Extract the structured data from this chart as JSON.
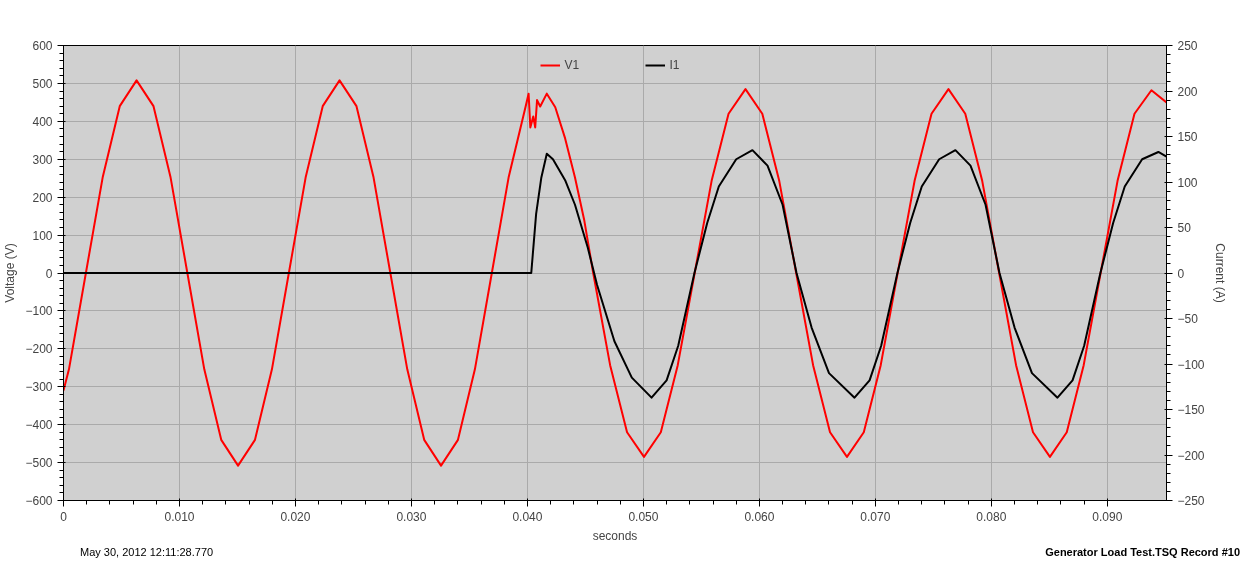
{
  "chart_data": {
    "type": "line",
    "xlabel": "seconds",
    "ylabel": "Voltage (V)",
    "y2label": "Current (A)",
    "annotations": [
      "May 30, 2012 12:11:28.770",
      "Generator Load Test.TSQ   Record #10"
    ],
    "xlim": [
      0,
      0.0951
    ],
    "ylim": [
      -600,
      600
    ],
    "y2lim": [
      -250,
      250
    ],
    "xticks": [
      0,
      {
        "value": 0.01,
        "label": "0.010"
      },
      {
        "value": 0.02,
        "label": "0.020"
      },
      {
        "value": 0.03,
        "label": "0.030"
      },
      {
        "value": 0.04,
        "label": "0.040"
      },
      {
        "value": 0.05,
        "label": "0.050"
      },
      {
        "value": 0.06,
        "label": "0.060"
      },
      {
        "value": 0.07,
        "label": "0.070"
      },
      {
        "value": 0.08,
        "label": "0.080"
      },
      {
        "value": 0.09,
        "label": "0.090"
      }
    ],
    "yticks": [
      -600,
      -500,
      -400,
      -300,
      -200,
      -100,
      0,
      100,
      200,
      300,
      400,
      500,
      600
    ],
    "y2ticks": [
      -250,
      -200,
      -150,
      -100,
      -50,
      0,
      50,
      100,
      150,
      200,
      250
    ],
    "grid": true,
    "legend": "top",
    "series": [
      {
        "name": "V1",
        "color": "#ff0000",
        "x": [
          0,
          0.00047,
          0.00193,
          0.00339,
          0.00485,
          0.0063,
          0.00776,
          0.00922,
          0.01068,
          0.01214,
          0.0136,
          0.01505,
          0.01651,
          0.01797,
          0.01943,
          0.02089,
          0.02235,
          0.0238,
          0.02526,
          0.02672,
          0.02818,
          0.02964,
          0.0311,
          0.03255,
          0.03401,
          0.03547,
          0.03693,
          0.03839,
          0.03985,
          0.0401,
          0.04025,
          0.0405,
          0.04067,
          0.04083,
          0.0411,
          0.04167,
          0.0424,
          0.04325,
          0.0441,
          0.0449,
          0.04567,
          0.04713,
          0.04859,
          0.05005,
          0.0515,
          0.05296,
          0.05442,
          0.05588,
          0.05734,
          0.0588,
          0.06025,
          0.06171,
          0.06317,
          0.06463,
          0.06609,
          0.06755,
          0.069,
          0.07046,
          0.07192,
          0.07338,
          0.07484,
          0.0763,
          0.07775,
          0.07921,
          0.08067,
          0.08213,
          0.08359,
          0.08505,
          0.0865,
          0.08796,
          0.08942,
          0.09088,
          0.09234,
          0.0938,
          0.0951
        ],
        "values": [
          -310,
          -254,
          0,
          254,
          440,
          508,
          440,
          254,
          0,
          -254,
          -440,
          -508,
          -440,
          -254,
          0,
          254,
          440,
          508,
          440,
          254,
          0,
          -254,
          -440,
          -508,
          -440,
          -254,
          0,
          254,
          440,
          473,
          384,
          413,
          384,
          456,
          439,
          473,
          437,
          355,
          252,
          139,
          0,
          -243,
          -420,
          -485,
          -420,
          -243,
          0,
          243,
          420,
          485,
          420,
          243,
          0,
          -243,
          -420,
          -485,
          -420,
          -243,
          0,
          243,
          420,
          485,
          420,
          243,
          0,
          -243,
          -420,
          -485,
          -420,
          -243,
          0,
          243,
          420,
          482,
          450
        ]
      },
      {
        "name": "I1",
        "color": "#000000",
        "axis": "y2",
        "x": [
          0,
          0.04033,
          0.04075,
          0.0412,
          0.04167,
          0.0422,
          0.04325,
          0.0441,
          0.0452,
          0.046,
          0.0475,
          0.049,
          0.0507,
          0.052,
          0.053,
          0.0544,
          0.0555,
          0.0565,
          0.058,
          0.0594,
          0.0607,
          0.062,
          0.0632,
          0.0645,
          0.066,
          0.0682,
          0.0695,
          0.0705,
          0.0719,
          0.073,
          0.074,
          0.0755,
          0.0769,
          0.0782,
          0.0795,
          0.0807,
          0.082,
          0.0835,
          0.0857,
          0.087,
          0.088,
          0.0894,
          0.0905,
          0.0915,
          0.093,
          0.0944,
          0.0951
        ],
        "values": [
          0,
          0,
          65,
          105,
          131,
          125,
          102,
          75,
          28,
          -13,
          -75,
          -115,
          -137,
          -118,
          -80,
          0,
          55,
          95,
          125,
          135,
          118,
          75,
          0,
          -60,
          -110,
          -137,
          -118,
          -80,
          0,
          55,
          95,
          125,
          135,
          118,
          75,
          0,
          -60,
          -110,
          -137,
          -118,
          -80,
          0,
          55,
          95,
          125,
          133,
          128
        ]
      }
    ]
  }
}
